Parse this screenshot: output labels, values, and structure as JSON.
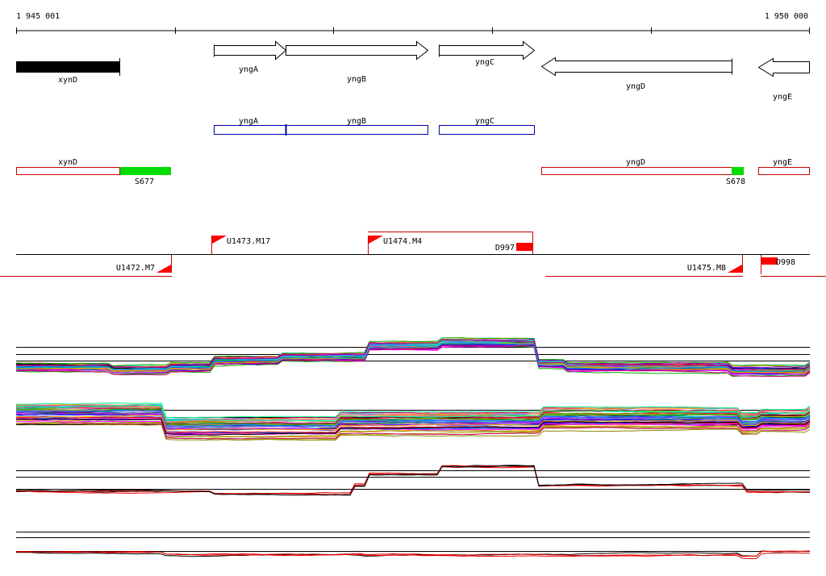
{
  "ruler": {
    "start_label": "1 945 001",
    "end_label": "1 950 000"
  },
  "genes": [
    {
      "name": "xynD",
      "strand": "none"
    },
    {
      "name": "yngA",
      "strand": "+"
    },
    {
      "name": "yngB",
      "strand": "+"
    },
    {
      "name": "yngC",
      "strand": "+"
    },
    {
      "name": "yngD",
      "strand": "-"
    },
    {
      "name": "yngE",
      "strand": "-"
    }
  ],
  "operon_track": {
    "labels": [
      "yngA",
      "yngB",
      "yngC"
    ],
    "color": "#0000aa"
  },
  "transcript_track": {
    "labels": [
      "xynD",
      "yngD",
      "yngE"
    ],
    "markers": [
      "S677",
      "S678"
    ],
    "box_color": "#cc0000",
    "marker_color": "#00dd00"
  },
  "promoters": {
    "labels": [
      "U1473.M17",
      "U1474.M4",
      "D997",
      "U1472.M7",
      "U1475.M8",
      "D998"
    ],
    "color": "#ff0000"
  },
  "expression_panels": [
    {
      "name": "panel-1",
      "series_colors": "multi"
    },
    {
      "name": "panel-2",
      "series_colors": "multi"
    },
    {
      "name": "panel-3",
      "series_colors": [
        "#000000",
        "#ff0000"
      ]
    },
    {
      "name": "panel-4",
      "series_colors": [
        "#000000",
        "#ff0000"
      ]
    }
  ]
}
